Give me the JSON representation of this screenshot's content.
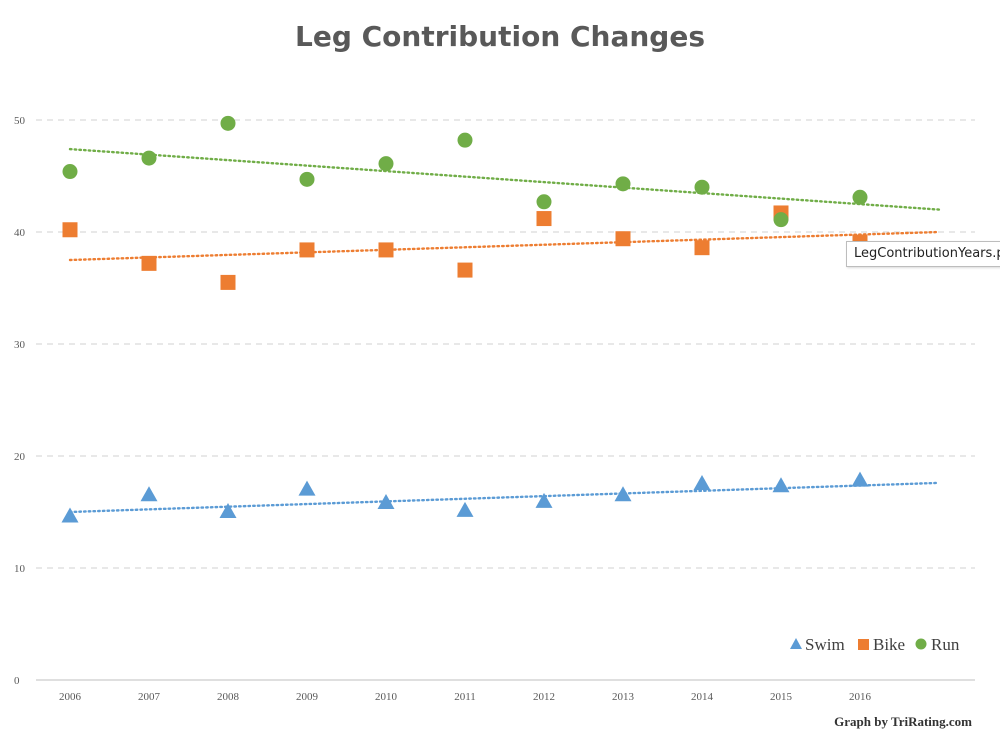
{
  "tooltip": {
    "text": "LegContributionYears.png"
  },
  "credit": {
    "text": "Graph by TriRating.com"
  },
  "chart_data": {
    "type": "scatter",
    "title": "Leg Contribution Changes",
    "xlabel": "",
    "ylabel": "",
    "categories": [
      "2006",
      "2007",
      "2008",
      "2009",
      "2010",
      "2011",
      "2012",
      "2013",
      "2014",
      "2015",
      "2016"
    ],
    "ylim": [
      0,
      50
    ],
    "yticks": [
      "0",
      "10",
      "20",
      "30",
      "40",
      "50"
    ],
    "grid": "horizontal dashed",
    "legend_position": "bottom-right",
    "trendlines": "linear, dotted",
    "series": [
      {
        "name": "Swim",
        "marker": "triangle",
        "color": "#5b9bd5",
        "values": [
          14.6,
          16.5,
          15.0,
          17.0,
          15.8,
          15.1,
          15.9,
          16.5,
          17.5,
          17.3,
          17.8
        ],
        "trend": [
          15.0,
          17.6
        ]
      },
      {
        "name": "Bike",
        "marker": "square",
        "color": "#ed7d31",
        "values": [
          40.2,
          37.2,
          35.5,
          38.4,
          38.4,
          36.6,
          41.2,
          39.4,
          38.6,
          41.7,
          39.1
        ],
        "trend": [
          37.5,
          40.0
        ]
      },
      {
        "name": "Run",
        "marker": "circle",
        "color": "#70ad47",
        "values": [
          45.4,
          46.6,
          49.7,
          44.7,
          46.1,
          48.2,
          42.7,
          44.3,
          44.0,
          41.1,
          43.1
        ],
        "trend": [
          47.4,
          42.0
        ]
      }
    ]
  }
}
